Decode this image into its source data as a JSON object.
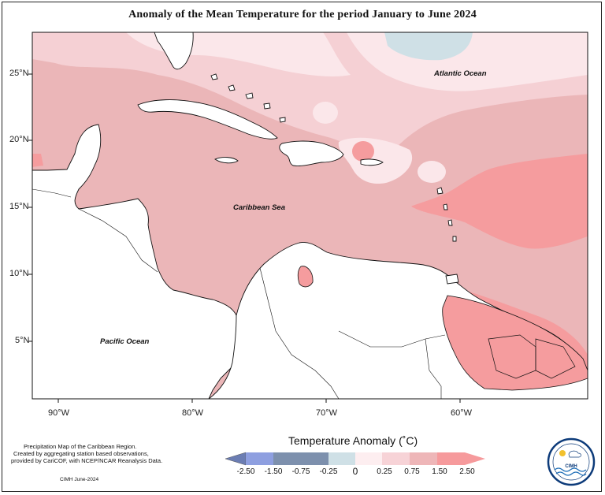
{
  "title": "Anomaly of the Mean Temperature for the period January to June 2024",
  "lat_labels": [
    "25°N",
    "20°N",
    "15°N",
    "10°N",
    "5°N"
  ],
  "lon_labels": [
    "90°W",
    "80°W",
    "70°W",
    "60°W"
  ],
  "labels": {
    "atlantic": "Atlantic Ocean",
    "caribbean": "Caribbean Sea",
    "pacific": "Pacific Ocean"
  },
  "notes": {
    "line1": "Precipitation Map of the Caribbean Region.",
    "line2": "Created by aggregating station based observations,",
    "line3": "provided by CariCOF, with NCEP/NCAR Reanalysis Data.",
    "credit": "CIMH June-2024"
  },
  "legend": {
    "title": "Temperature Anomaly (˚C)",
    "ticks": [
      "-2.50",
      "-1.50",
      "-0.75",
      "-0.25",
      "0",
      "0.25",
      "0.75",
      "1.50",
      "2.50"
    ],
    "colors": [
      "#6b7db3",
      "#8e9fe0",
      "#7d90ad",
      "#cfe0e6",
      "#fdeef0",
      "#f7d3d7",
      "#eeb6b8",
      "#f69a9c"
    ]
  },
  "logo": {
    "text": "CIMH"
  },
  "colors": {
    "land": "#ffffff",
    "anom_0_025": "#fbe7ea",
    "anom_025_075": "#f5d0d4",
    "anom_075_150": "#ebb6b8",
    "anom_150_250": "#f59c9e",
    "anom_neg": "#cfe0e6"
  }
}
